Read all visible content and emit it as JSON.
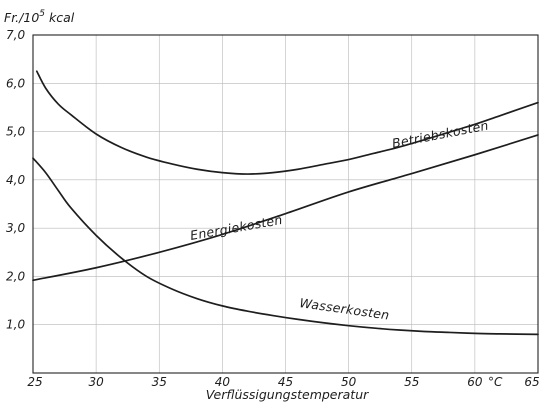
{
  "chart_data": {
    "type": "line",
    "ylabel_main": "Fr./10",
    "ylabel_exp": "5",
    "ylabel_unit": " kcal",
    "xlabel": "Verflüssigungstemperatur",
    "x_unit": "°C",
    "xlim": [
      25,
      65
    ],
    "ylim": [
      0,
      7
    ],
    "xticks": [
      "25",
      "30",
      "35",
      "40",
      "45",
      "50",
      "55",
      "60",
      "65"
    ],
    "yticks": [
      "1,0",
      "2,0",
      "3,0",
      "4,0",
      "5,0",
      "6,0",
      "7,0"
    ],
    "grid": true,
    "series": [
      {
        "name": "Betriebskosten",
        "x": [
          25.3,
          26,
          27,
          28,
          30,
          32,
          34,
          36,
          38,
          40,
          42,
          44,
          46,
          48,
          50,
          52,
          54,
          56,
          58,
          60,
          62,
          65
        ],
        "y": [
          6.25,
          5.9,
          5.57,
          5.35,
          4.95,
          4.67,
          4.47,
          4.33,
          4.22,
          4.15,
          4.12,
          4.15,
          4.22,
          4.32,
          4.42,
          4.55,
          4.68,
          4.83,
          4.99,
          5.15,
          5.33,
          5.6
        ]
      },
      {
        "name": "Energiekosten",
        "x": [
          25,
          30,
          35,
          40,
          45,
          50,
          55,
          60,
          65
        ],
        "y": [
          1.92,
          2.18,
          2.5,
          2.87,
          3.3,
          3.75,
          4.13,
          4.52,
          4.93
        ]
      },
      {
        "name": "Wasserkosten",
        "x": [
          25,
          26,
          27,
          28,
          30,
          32,
          34,
          36,
          38,
          40,
          42,
          44,
          46,
          48,
          50,
          52,
          54,
          56,
          58,
          60,
          62,
          65
        ],
        "y": [
          4.45,
          4.15,
          3.78,
          3.42,
          2.85,
          2.38,
          2.0,
          1.74,
          1.54,
          1.39,
          1.28,
          1.19,
          1.11,
          1.04,
          0.98,
          0.93,
          0.89,
          0.86,
          0.84,
          0.82,
          0.81,
          0.8
        ]
      }
    ]
  }
}
